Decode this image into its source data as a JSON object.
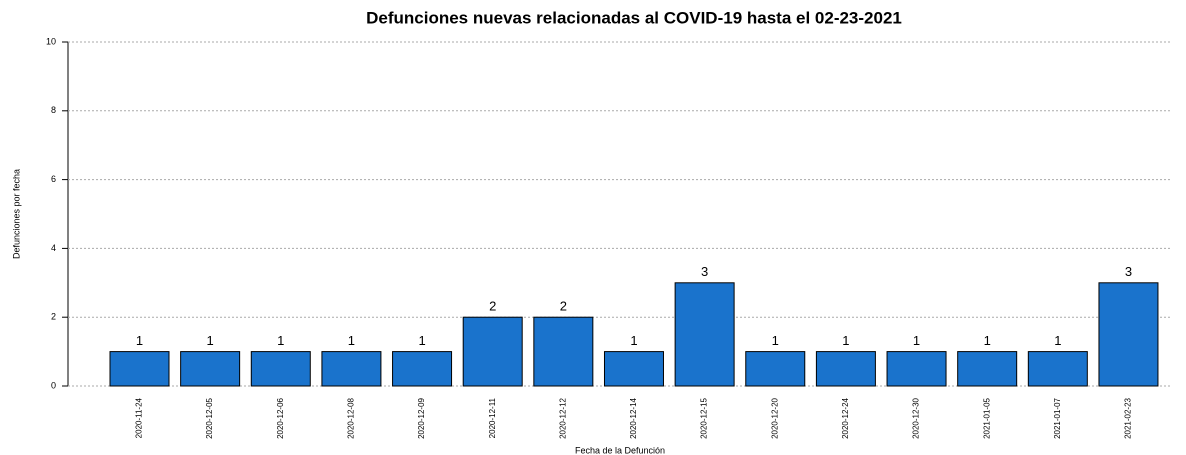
{
  "chart_data": {
    "type": "bar",
    "title": "Defunciones nuevas relacionadas al COVID-19 hasta el 02-23-2021",
    "x_label": "Fecha de la Defunción",
    "y_label": "Defunciones por fecha",
    "categories": [
      "2020-11-24",
      "2020-12-05",
      "2020-12-06",
      "2020-12-08",
      "2020-12-09",
      "2020-12-11",
      "2020-12-12",
      "2020-12-14",
      "2020-12-15",
      "2020-12-20",
      "2020-12-24",
      "2020-12-30",
      "2021-01-05",
      "2021-01-07",
      "2021-02-23"
    ],
    "values": [
      1,
      1,
      1,
      1,
      1,
      2,
      2,
      1,
      3,
      1,
      1,
      1,
      1,
      1,
      3
    ],
    "color": "#1a73cc",
    "ylim": [
      0,
      10
    ],
    "yticks": [
      0,
      2,
      4,
      6,
      8,
      10
    ],
    "grid": true
  }
}
